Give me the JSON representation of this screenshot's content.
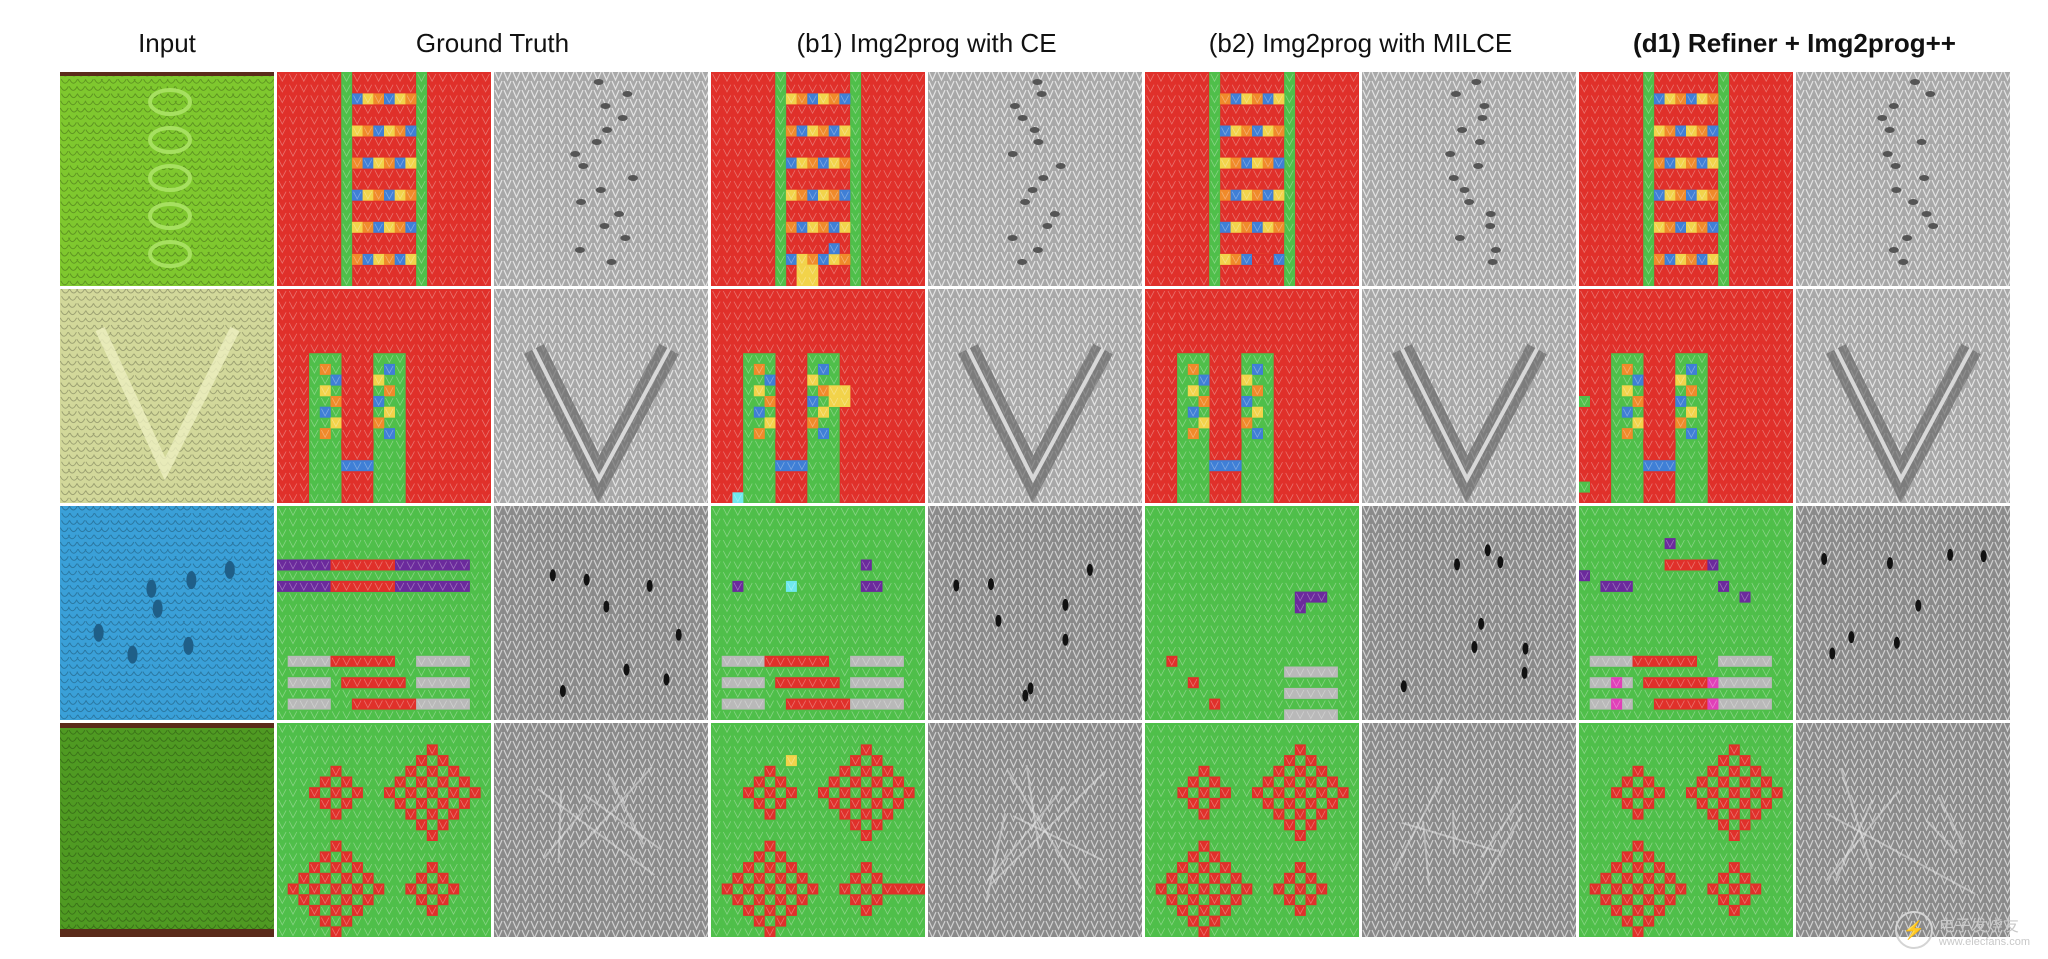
{
  "headers": {
    "input": "Input",
    "ground_truth": "Ground Truth",
    "b1": "(b1) Img2prog with CE",
    "b2": "(b2) Img2prog with MILCE",
    "d1": "(d1) Refiner + Img2prog++"
  },
  "colors": {
    "knit_red": "#e0302a",
    "knit_green": "#4fbf4a",
    "cable_blue": "#3f7fd6",
    "cable_orange": "#f08a2a",
    "cable_yellow": "#f2d34a",
    "purple": "#6b2a9c",
    "tuck_gray": "#b9b9b9",
    "magenta": "#e040b8",
    "cyan": "#6ee8ee",
    "photo_green": "#7fc82e",
    "photo_pale": "#d2d89a",
    "photo_blue": "#3aa0d8",
    "photo_grass": "#4f9a22",
    "render_gray": "#a8a8a8"
  },
  "rows": [
    {
      "input": "green-cable-knit-photo",
      "pattern": "red-with-green-cable-ladder"
    },
    {
      "input": "pale-yellow-knit-photo",
      "pattern": "red-with-green-v-cable"
    },
    {
      "input": "blue-lace-knit-photo",
      "pattern": "green-with-stripes-and-eyelets"
    },
    {
      "input": "green-grass-knit-photo",
      "pattern": "green-with-red-diamonds"
    }
  ],
  "watermark": {
    "text": "电子发烧友",
    "subtext": "www.elecfans.com"
  }
}
